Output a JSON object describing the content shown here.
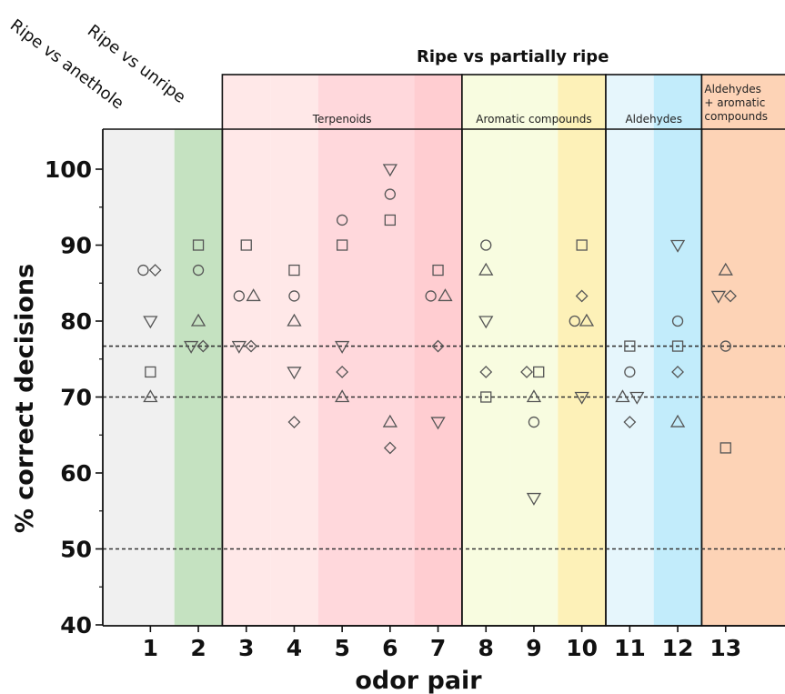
{
  "chart_data": {
    "type": "scatter",
    "title": "",
    "xlabel": "odor pair",
    "ylabel": "% correct decisions",
    "ylim": [
      40,
      105
    ],
    "yticks": [
      40,
      50,
      60,
      70,
      80,
      90,
      100
    ],
    "categories": [
      "1",
      "2",
      "3",
      "4",
      "5",
      "6",
      "7",
      "8",
      "9",
      "10",
      "11",
      "12",
      "13"
    ],
    "reference_lines": [
      50,
      70,
      76.7
    ],
    "comparisons": [
      {
        "label": "Ripe vs anethole",
        "pairs": [
          "1"
        ]
      },
      {
        "label": "Ripe vs unripe",
        "pairs": [
          "2"
        ]
      },
      {
        "label": "Ripe vs partially ripe",
        "pairs": [
          "3",
          "4",
          "5",
          "6",
          "7",
          "8",
          "9",
          "10",
          "11",
          "12",
          "13"
        ]
      }
    ],
    "groups": [
      {
        "label": "Terpenoids",
        "pairs": [
          "3",
          "4",
          "5",
          "6",
          "7"
        ]
      },
      {
        "label": "Aromatic compounds",
        "pairs": [
          "8",
          "9",
          "10"
        ]
      },
      {
        "label": "Aldehydes",
        "pairs": [
          "11",
          "12"
        ]
      },
      {
        "label": "Aldehydes + aromatic compounds",
        "lines": [
          "Aldehydes",
          "+ aromatic",
          "compounds"
        ],
        "pairs": [
          "13"
        ]
      }
    ],
    "background_colors": [
      "#f0f0f0",
      "#c5e2c1",
      "#ffe8e8",
      "#ffe8e8",
      "#ffd8dc",
      "#ffd8dc",
      "#ffcdd1",
      "#f8fce0",
      "#f8fce0",
      "#fdf1b8",
      "#e6f6fc",
      "#c2ecfb",
      "#fdd3b6"
    ],
    "points": [
      {
        "pair": 1,
        "marker": "circle",
        "value": 86.7,
        "offset": -0.15
      },
      {
        "pair": 1,
        "marker": "diamond",
        "value": 86.7,
        "offset": 0.1
      },
      {
        "pair": 1,
        "marker": "triangle-down",
        "value": 80.0,
        "offset": 0
      },
      {
        "pair": 1,
        "marker": "square",
        "value": 73.3,
        "offset": 0
      },
      {
        "pair": 1,
        "marker": "triangle-up",
        "value": 70.0,
        "offset": 0
      },
      {
        "pair": 2,
        "marker": "square",
        "value": 90.0,
        "offset": 0
      },
      {
        "pair": 2,
        "marker": "circle",
        "value": 86.7,
        "offset": 0
      },
      {
        "pair": 2,
        "marker": "triangle-up",
        "value": 80.0,
        "offset": 0
      },
      {
        "pair": 2,
        "marker": "triangle-down",
        "value": 76.7,
        "offset": -0.15
      },
      {
        "pair": 2,
        "marker": "diamond",
        "value": 76.7,
        "offset": 0.1
      },
      {
        "pair": 3,
        "marker": "square",
        "value": 90.0,
        "offset": 0
      },
      {
        "pair": 3,
        "marker": "circle",
        "value": 83.3,
        "offset": -0.15
      },
      {
        "pair": 3,
        "marker": "triangle-up",
        "value": 83.3,
        "offset": 0.15
      },
      {
        "pair": 3,
        "marker": "triangle-down",
        "value": 76.7,
        "offset": -0.15
      },
      {
        "pair": 3,
        "marker": "diamond",
        "value": 76.7,
        "offset": 0.1
      },
      {
        "pair": 4,
        "marker": "square",
        "value": 86.7,
        "offset": 0
      },
      {
        "pair": 4,
        "marker": "circle",
        "value": 83.3,
        "offset": 0
      },
      {
        "pair": 4,
        "marker": "triangle-up",
        "value": 80.0,
        "offset": 0
      },
      {
        "pair": 4,
        "marker": "triangle-down",
        "value": 73.3,
        "offset": 0
      },
      {
        "pair": 4,
        "marker": "diamond",
        "value": 66.7,
        "offset": 0
      },
      {
        "pair": 5,
        "marker": "circle",
        "value": 93.3,
        "offset": 0
      },
      {
        "pair": 5,
        "marker": "square",
        "value": 90.0,
        "offset": 0
      },
      {
        "pair": 5,
        "marker": "triangle-down",
        "value": 76.7,
        "offset": 0
      },
      {
        "pair": 5,
        "marker": "diamond",
        "value": 73.3,
        "offset": 0
      },
      {
        "pair": 5,
        "marker": "triangle-up",
        "value": 70.0,
        "offset": 0
      },
      {
        "pair": 6,
        "marker": "triangle-down",
        "value": 100.0,
        "offset": 0
      },
      {
        "pair": 6,
        "marker": "circle",
        "value": 96.7,
        "offset": 0
      },
      {
        "pair": 6,
        "marker": "square",
        "value": 93.3,
        "offset": 0
      },
      {
        "pair": 6,
        "marker": "triangle-up",
        "value": 66.7,
        "offset": 0
      },
      {
        "pair": 6,
        "marker": "diamond",
        "value": 63.3,
        "offset": 0
      },
      {
        "pair": 7,
        "marker": "square",
        "value": 86.7,
        "offset": 0
      },
      {
        "pair": 7,
        "marker": "circle",
        "value": 83.3,
        "offset": -0.15
      },
      {
        "pair": 7,
        "marker": "triangle-up",
        "value": 83.3,
        "offset": 0.15
      },
      {
        "pair": 7,
        "marker": "diamond",
        "value": 76.7,
        "offset": 0
      },
      {
        "pair": 7,
        "marker": "triangle-down",
        "value": 66.7,
        "offset": 0
      },
      {
        "pair": 8,
        "marker": "circle",
        "value": 90.0,
        "offset": 0
      },
      {
        "pair": 8,
        "marker": "triangle-up",
        "value": 86.7,
        "offset": 0
      },
      {
        "pair": 8,
        "marker": "triangle-down",
        "value": 80.0,
        "offset": 0
      },
      {
        "pair": 8,
        "marker": "diamond",
        "value": 73.3,
        "offset": 0
      },
      {
        "pair": 8,
        "marker": "square",
        "value": 70.0,
        "offset": 0
      },
      {
        "pair": 9,
        "marker": "diamond",
        "value": 73.3,
        "offset": -0.15
      },
      {
        "pair": 9,
        "marker": "square",
        "value": 73.3,
        "offset": 0.1
      },
      {
        "pair": 9,
        "marker": "triangle-up",
        "value": 70.0,
        "offset": 0
      },
      {
        "pair": 9,
        "marker": "circle",
        "value": 66.7,
        "offset": 0
      },
      {
        "pair": 9,
        "marker": "triangle-down",
        "value": 56.7,
        "offset": 0
      },
      {
        "pair": 10,
        "marker": "square",
        "value": 90.0,
        "offset": 0
      },
      {
        "pair": 10,
        "marker": "diamond",
        "value": 83.3,
        "offset": 0
      },
      {
        "pair": 10,
        "marker": "circle",
        "value": 80.0,
        "offset": -0.15
      },
      {
        "pair": 10,
        "marker": "triangle-up",
        "value": 80.0,
        "offset": 0.1
      },
      {
        "pair": 10,
        "marker": "triangle-down",
        "value": 70.0,
        "offset": 0
      },
      {
        "pair": 11,
        "marker": "square",
        "value": 76.7,
        "offset": 0
      },
      {
        "pair": 11,
        "marker": "circle",
        "value": 73.3,
        "offset": 0
      },
      {
        "pair": 11,
        "marker": "triangle-up",
        "value": 70.0,
        "offset": -0.15
      },
      {
        "pair": 11,
        "marker": "triangle-down",
        "value": 70.0,
        "offset": 0.15
      },
      {
        "pair": 11,
        "marker": "diamond",
        "value": 66.7,
        "offset": 0
      },
      {
        "pair": 12,
        "marker": "triangle-down",
        "value": 90.0,
        "offset": 0
      },
      {
        "pair": 12,
        "marker": "circle",
        "value": 80.0,
        "offset": 0
      },
      {
        "pair": 12,
        "marker": "square",
        "value": 76.7,
        "offset": 0
      },
      {
        "pair": 12,
        "marker": "diamond",
        "value": 73.3,
        "offset": 0
      },
      {
        "pair": 12,
        "marker": "triangle-up",
        "value": 66.7,
        "offset": 0
      },
      {
        "pair": 13,
        "marker": "triangle-up",
        "value": 86.7,
        "offset": 0
      },
      {
        "pair": 13,
        "marker": "triangle-down",
        "value": 83.3,
        "offset": -0.15
      },
      {
        "pair": 13,
        "marker": "diamond",
        "value": 83.3,
        "offset": 0.1
      },
      {
        "pair": 13,
        "marker": "circle",
        "value": 76.7,
        "offset": 0
      },
      {
        "pair": 13,
        "marker": "square",
        "value": 63.3,
        "offset": 0
      }
    ]
  }
}
